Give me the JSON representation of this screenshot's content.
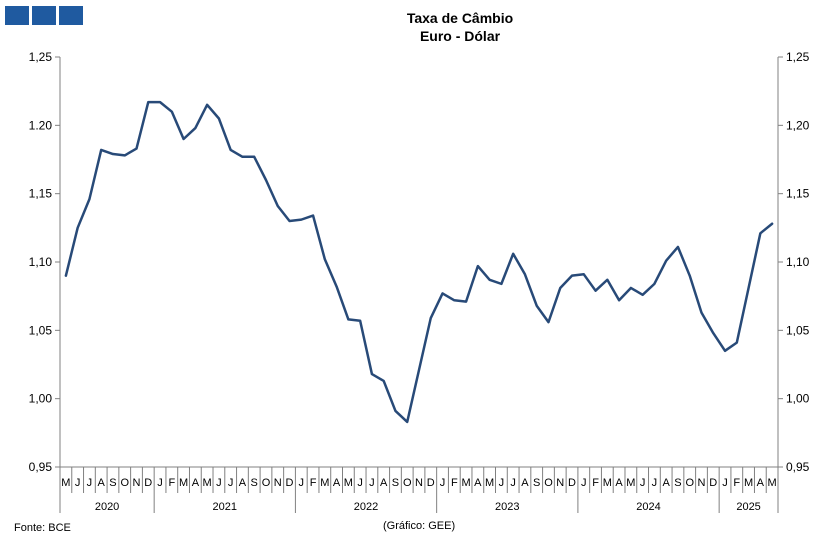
{
  "colors": {
    "logo": "#1f5aa0",
    "series": "#284a78",
    "axis": "#808080"
  },
  "title": {
    "line1": "Taxa de Câmbio",
    "line2": "Euro - Dólar"
  },
  "footer": {
    "source": "Fonte: BCE",
    "credit": "(Gráfico: GEE)"
  },
  "chart_data": {
    "type": "line",
    "ylim": [
      0.95,
      1.25
    ],
    "yticks_left": [
      "1,25",
      "1.20",
      "1,15",
      "1,10",
      "1,05",
      "1,00",
      "0,95"
    ],
    "yticks_right": [
      "1,25",
      "1,20",
      "1,15",
      "1,10",
      "1,05",
      "1,00",
      "0,95"
    ],
    "ytick_values": [
      1.25,
      1.2,
      1.15,
      1.1,
      1.05,
      1.0,
      0.95
    ],
    "month_labels": [
      "M",
      "J",
      "J",
      "A",
      "S",
      "O",
      "N",
      "D",
      "J",
      "F",
      "M",
      "A",
      "M",
      "J",
      "J",
      "A",
      "S",
      "O",
      "N",
      "D",
      "J",
      "F",
      "M",
      "A",
      "M",
      "J",
      "J",
      "A",
      "S",
      "O",
      "N",
      "D",
      "J",
      "F",
      "M",
      "A",
      "M",
      "J",
      "J",
      "A",
      "S",
      "O",
      "N",
      "D",
      "J",
      "F",
      "M",
      "A",
      "M",
      "J",
      "J",
      "A",
      "S",
      "O",
      "N",
      "D",
      "J",
      "F",
      "M",
      "A",
      "M"
    ],
    "years": [
      {
        "label": "2020",
        "start": 0,
        "end": 7
      },
      {
        "label": "2021",
        "start": 8,
        "end": 19
      },
      {
        "label": "2022",
        "start": 20,
        "end": 31
      },
      {
        "label": "2023",
        "start": 32,
        "end": 43
      },
      {
        "label": "2024",
        "start": 44,
        "end": 55
      },
      {
        "label": "2025",
        "start": 56,
        "end": 60
      }
    ],
    "series": [
      {
        "values": [
          1.09,
          1.125,
          1.146,
          1.182,
          1.179,
          1.178,
          1.183,
          1.217,
          1.217,
          1.21,
          1.19,
          1.198,
          1.215,
          1.205,
          1.182,
          1.177,
          1.177,
          1.16,
          1.141,
          1.13,
          1.131,
          1.134,
          1.102,
          1.082,
          1.058,
          1.057,
          1.018,
          1.013,
          0.991,
          0.983,
          1.021,
          1.059,
          1.077,
          1.072,
          1.071,
          1.097,
          1.087,
          1.084,
          1.106,
          1.091,
          1.068,
          1.056,
          1.081,
          1.09,
          1.091,
          1.079,
          1.087,
          1.072,
          1.081,
          1.076,
          1.084,
          1.101,
          1.111,
          1.09,
          1.063,
          1.048,
          1.035,
          1.041,
          1.081,
          1.121,
          1.128
        ]
      }
    ]
  }
}
